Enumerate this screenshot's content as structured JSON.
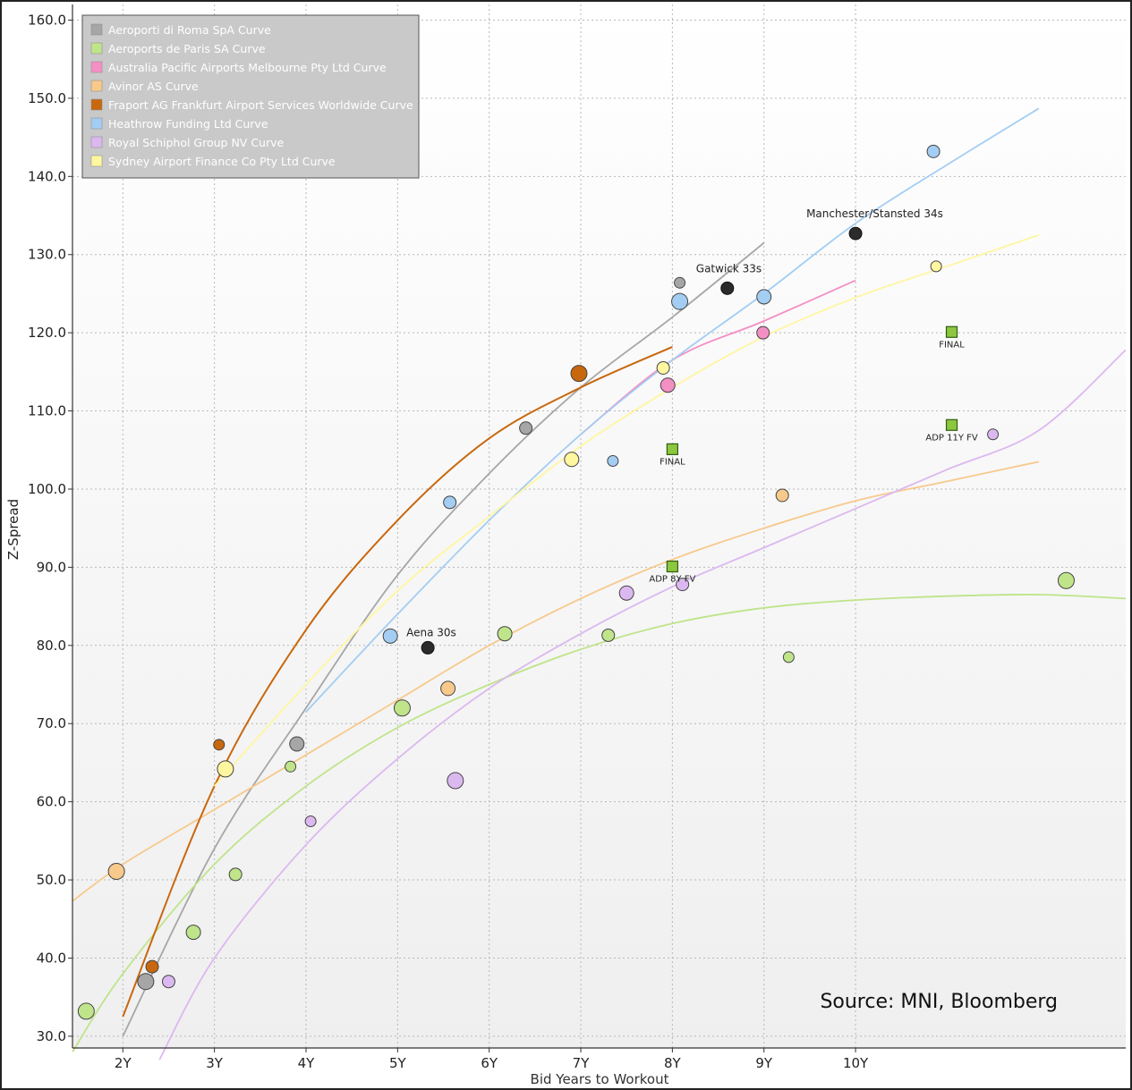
{
  "chart_data": {
    "type": "scatter",
    "xlabel": "Bid Years to Workout",
    "ylabel": "Z-Spread",
    "xlim": [
      1.45,
      12.95
    ],
    "ylim": [
      28.5,
      162.0
    ],
    "x_ticks": [
      2,
      3,
      4,
      5,
      6,
      7,
      8,
      9,
      10
    ],
    "x_tick_labels": [
      "2Y",
      "3Y",
      "4Y",
      "5Y",
      "6Y",
      "7Y",
      "8Y",
      "9Y",
      "10Y"
    ],
    "y_ticks": [
      30,
      40,
      50,
      60,
      70,
      80,
      90,
      100,
      110,
      120,
      130,
      140,
      150,
      160
    ],
    "y_tick_labels": [
      "30.0",
      "40.0",
      "50.0",
      "60.0",
      "70.0",
      "80.0",
      "90.0",
      "100.0",
      "110.0",
      "120.0",
      "130.0",
      "140.0",
      "150.0",
      "160.0"
    ],
    "grid": true,
    "legend_position": "top-left",
    "source_note": "Source: MNI, Bloomberg",
    "series": [
      {
        "name": "Aeroporti di Roma SpA Curve",
        "color": "#a6a6a6",
        "points": [
          [
            2.25,
            37
          ],
          [
            3.9,
            67.4
          ],
          [
            6.4,
            107.8
          ],
          [
            8.08,
            126.4
          ]
        ],
        "curve": [
          [
            2.0,
            30
          ],
          [
            3.0,
            54
          ],
          [
            4.0,
            72
          ],
          [
            5.0,
            89
          ],
          [
            6.0,
            102
          ],
          [
            7.0,
            113
          ],
          [
            8.0,
            122
          ],
          [
            9.0,
            131.5
          ]
        ]
      },
      {
        "name": "Aeroports de Paris SA Curve",
        "color": "#bfe48a",
        "points": [
          [
            1.6,
            33.2
          ],
          [
            2.77,
            43.3
          ],
          [
            3.23,
            50.7
          ],
          [
            3.83,
            64.5
          ],
          [
            5.05,
            72
          ],
          [
            6.17,
            81.5
          ],
          [
            7.3,
            81.3
          ],
          [
            9.27,
            78.5
          ],
          [
            12.3,
            88.3
          ]
        ],
        "curve": [
          [
            1.45,
            28
          ],
          [
            2.0,
            38
          ],
          [
            3.0,
            52
          ],
          [
            4.0,
            62
          ],
          [
            5.0,
            69.5
          ],
          [
            6.0,
            75
          ],
          [
            7.0,
            79.5
          ],
          [
            8.0,
            82.8
          ],
          [
            9.0,
            84.8
          ],
          [
            10.0,
            85.8
          ],
          [
            11.0,
            86.3
          ],
          [
            12.0,
            86.5
          ],
          [
            12.95,
            86.0
          ]
        ]
      },
      {
        "name": "Australia Pacific Airports Melbourne Pty Ltd Curve",
        "color": "#f48fc4",
        "points": [
          [
            7.95,
            113.3
          ],
          [
            8.99,
            120
          ]
        ],
        "curve": [
          [
            7.0,
            107
          ],
          [
            8.0,
            116.5
          ],
          [
            9.0,
            121.5
          ],
          [
            10.0,
            126.7
          ]
        ]
      },
      {
        "name": "Avinor AS Curve",
        "color": "#f7c98b",
        "points": [
          [
            1.93,
            51.1
          ],
          [
            5.55,
            74.5
          ],
          [
            9.2,
            99.2
          ]
        ],
        "curve": [
          [
            1.45,
            47.3
          ],
          [
            2.0,
            52
          ],
          [
            3.0,
            59
          ],
          [
            4.0,
            66
          ],
          [
            5.0,
            73
          ],
          [
            6.0,
            80
          ],
          [
            7.0,
            86
          ],
          [
            8.0,
            91
          ],
          [
            9.0,
            95
          ],
          [
            10.0,
            98.5
          ],
          [
            11.0,
            101
          ],
          [
            12.0,
            103.5
          ]
        ]
      },
      {
        "name": "Fraport AG Frankfurt Airport Services Worldwide Curve",
        "color": "#c8680e",
        "points": [
          [
            2.32,
            38.9
          ],
          [
            3.05,
            67.3
          ],
          [
            6.98,
            114.8
          ]
        ],
        "curve": [
          [
            2.0,
            32.5
          ],
          [
            3.0,
            62
          ],
          [
            4.0,
            82
          ],
          [
            5.0,
            96
          ],
          [
            6.0,
            106.5
          ],
          [
            7.0,
            113
          ],
          [
            8.0,
            118.2
          ]
        ]
      },
      {
        "name": "Heathrow Funding Ltd Curve",
        "color": "#a3cdf3",
        "points": [
          [
            4.92,
            81.2
          ],
          [
            5.57,
            98.3
          ],
          [
            7.35,
            103.6
          ],
          [
            8.08,
            124
          ],
          [
            9.0,
            124.6
          ],
          [
            10.85,
            143.2
          ]
        ],
        "curve": [
          [
            4.0,
            71.5
          ],
          [
            5.0,
            84
          ],
          [
            6.0,
            96
          ],
          [
            7.0,
            107
          ],
          [
            8.0,
            116.5
          ],
          [
            9.0,
            125
          ],
          [
            10.0,
            134
          ],
          [
            11.0,
            141.5
          ],
          [
            12.0,
            148.7
          ]
        ]
      },
      {
        "name": "Royal Schiphol Group NV Curve",
        "color": "#dcb8f0",
        "points": [
          [
            2.5,
            37
          ],
          [
            4.05,
            57.5
          ],
          [
            5.63,
            62.7
          ],
          [
            7.5,
            86.7
          ],
          [
            8.11,
            87.8
          ],
          [
            11.5,
            107
          ]
        ],
        "curve": [
          [
            2.4,
            27
          ],
          [
            3.0,
            40
          ],
          [
            4.0,
            54.5
          ],
          [
            5.0,
            65.5
          ],
          [
            6.0,
            74.5
          ],
          [
            7.0,
            81.5
          ],
          [
            8.0,
            87.5
          ],
          [
            9.0,
            92.5
          ],
          [
            10.0,
            97.5
          ],
          [
            11.0,
            102.5
          ],
          [
            12.0,
            107.5
          ],
          [
            12.95,
            117.8
          ]
        ]
      },
      {
        "name": "Sydney Airport Finance Co Pty Ltd Curve",
        "color": "#fff6a0",
        "points": [
          [
            3.12,
            64.2
          ],
          [
            6.9,
            103.8
          ],
          [
            7.9,
            115.5
          ],
          [
            10.88,
            128.5
          ]
        ],
        "curve": [
          [
            3.0,
            62
          ],
          [
            4.0,
            75
          ],
          [
            5.0,
            87
          ],
          [
            6.0,
            96.5
          ],
          [
            7.0,
            105.5
          ],
          [
            8.0,
            113
          ],
          [
            9.0,
            119.5
          ],
          [
            10.0,
            124.5
          ],
          [
            11.0,
            128.5
          ],
          [
            12.0,
            132.5
          ]
        ]
      }
    ],
    "highlights": [
      {
        "label": "Gatwick 33s",
        "x": 8.6,
        "y": 125.7
      },
      {
        "label": "Manchester/Stansted 34s",
        "x": 10.0,
        "y": 132.7
      },
      {
        "label": "Aena 30s",
        "x": 5.33,
        "y": 79.7
      }
    ],
    "markers": [
      {
        "label": "FINAL",
        "x": 11.05,
        "y": 120.1
      },
      {
        "label": "FINAL",
        "x": 8.0,
        "y": 105.1
      },
      {
        "label": "ADP 11Y FV",
        "x": 11.05,
        "y": 108.2
      },
      {
        "label": "ADP 8Y FV",
        "x": 8.0,
        "y": 90.1
      }
    ]
  }
}
